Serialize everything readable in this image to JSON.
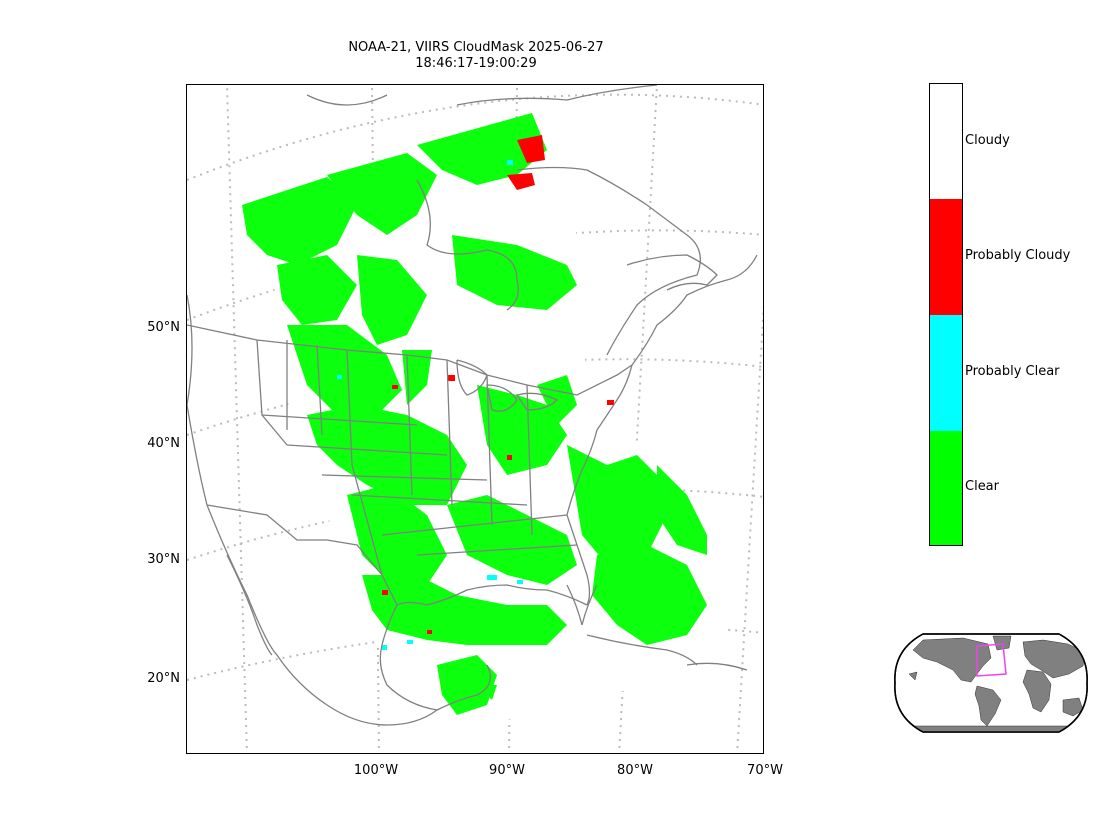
{
  "title": {
    "line1": "NOAA-21, VIIRS CloudMask 2025-06-27",
    "line2": "18:46:17-19:00:29"
  },
  "map": {
    "lat_labels": [
      "50°N",
      "40°N",
      "30°N",
      "20°N"
    ],
    "lon_labels": [
      "100°W",
      "90°W",
      "80°W",
      "70°W"
    ],
    "projection": "conic",
    "gridlines": "dotted gray",
    "coastline_color": "#808080"
  },
  "colorbar": {
    "categories": [
      {
        "label": "Cloudy",
        "color": "#ffffff"
      },
      {
        "label": "Probably Cloudy",
        "color": "#ff0000"
      },
      {
        "label": "Probably Clear",
        "color": "#00ffff"
      },
      {
        "label": "Clear",
        "color": "#00ff00"
      }
    ]
  },
  "inset": {
    "land_color": "#808080",
    "box_color": "#ee44ee"
  }
}
